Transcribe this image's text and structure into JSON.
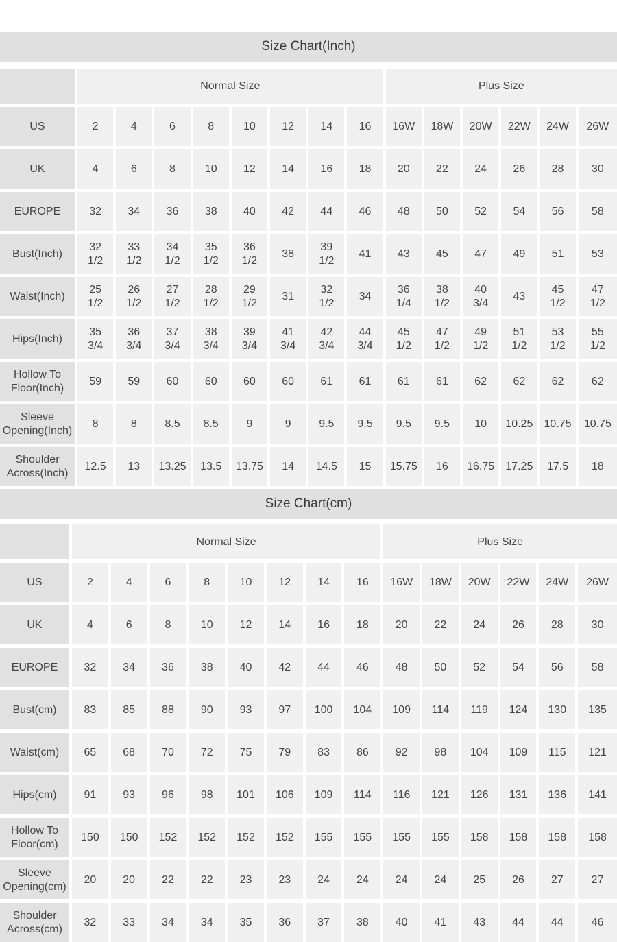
{
  "colors": {
    "banner_bg": "#e0e0e0",
    "label_cell_bg": "#e1e1e1",
    "data_cell_bg": "#f0f0f0",
    "title_text": "#3a3a3a",
    "text": "#454545"
  },
  "tables": [
    {
      "title": "Size Chart(Inch)",
      "groups": [
        {
          "label": "Normal Size",
          "span": 8
        },
        {
          "label": "Plus Size",
          "span": 6
        }
      ],
      "rows": [
        {
          "label": "US",
          "values": [
            "2",
            "4",
            "6",
            "8",
            "10",
            "12",
            "14",
            "16",
            "16W",
            "18W",
            "20W",
            "22W",
            "24W",
            "26W"
          ]
        },
        {
          "label": "UK",
          "values": [
            "4",
            "6",
            "8",
            "10",
            "12",
            "14",
            "16",
            "18",
            "20",
            "22",
            "24",
            "26",
            "28",
            "30"
          ]
        },
        {
          "label": "EUROPE",
          "values": [
            "32",
            "34",
            "36",
            "38",
            "40",
            "42",
            "44",
            "46",
            "48",
            "50",
            "52",
            "54",
            "56",
            "58"
          ]
        },
        {
          "label": "Bust(Inch)",
          "values": [
            "32\n1/2",
            "33\n1/2",
            "34\n1/2",
            "35\n1/2",
            "36\n1/2",
            "38",
            "39\n1/2",
            "41",
            "43",
            "45",
            "47",
            "49",
            "51",
            "53"
          ]
        },
        {
          "label": "Waist(Inch)",
          "values": [
            "25\n1/2",
            "26\n1/2",
            "27\n1/2",
            "28\n1/2",
            "29\n1/2",
            "31",
            "32\n1/2",
            "34",
            "36\n1/4",
            "38\n1/2",
            "40\n3/4",
            "43",
            "45\n1/2",
            "47\n1/2"
          ]
        },
        {
          "label": "Hips(Inch)",
          "values": [
            "35\n3/4",
            "36\n3/4",
            "37\n3/4",
            "38\n3/4",
            "39\n3/4",
            "41\n3/4",
            "42\n3/4",
            "44\n3/4",
            "45\n1/2",
            "47\n1/2",
            "49\n1/2",
            "51\n1/2",
            "53\n1/2",
            "55\n1/2"
          ]
        },
        {
          "label": "Hollow To Floor(Inch)",
          "values": [
            "59",
            "59",
            "60",
            "60",
            "60",
            "60",
            "61",
            "61",
            "61",
            "61",
            "62",
            "62",
            "62",
            "62"
          ]
        },
        {
          "label": "Sleeve Opening(Inch)",
          "values": [
            "8",
            "8",
            "8.5",
            "8.5",
            "9",
            "9",
            "9.5",
            "9.5",
            "9.5",
            "9.5",
            "10",
            "10.25",
            "10.75",
            "10.75"
          ]
        },
        {
          "label": "Shoulder Across(Inch)",
          "values": [
            "12.5",
            "13",
            "13.25",
            "13.5",
            "13.75",
            "14",
            "14.5",
            "15",
            "15.75",
            "16",
            "16.75",
            "17.25",
            "17.5",
            "18"
          ]
        }
      ]
    },
    {
      "title": "Size Chart(cm)",
      "groups": [
        {
          "label": "Normal Size",
          "span": 8
        },
        {
          "label": "Plus Size",
          "span": 6
        }
      ],
      "rows": [
        {
          "label": "US",
          "values": [
            "2",
            "4",
            "6",
            "8",
            "10",
            "12",
            "14",
            "16",
            "16W",
            "18W",
            "20W",
            "22W",
            "24W",
            "26W"
          ]
        },
        {
          "label": "UK",
          "values": [
            "4",
            "6",
            "8",
            "10",
            "12",
            "14",
            "16",
            "18",
            "20",
            "22",
            "24",
            "26",
            "28",
            "30"
          ]
        },
        {
          "label": "EUROPE",
          "values": [
            "32",
            "34",
            "36",
            "38",
            "40",
            "42",
            "44",
            "46",
            "48",
            "50",
            "52",
            "54",
            "56",
            "58"
          ]
        },
        {
          "label": "Bust(cm)",
          "values": [
            "83",
            "85",
            "88",
            "90",
            "93",
            "97",
            "100",
            "104",
            "109",
            "114",
            "119",
            "124",
            "130",
            "135"
          ]
        },
        {
          "label": "Waist(cm)",
          "values": [
            "65",
            "68",
            "70",
            "72",
            "75",
            "79",
            "83",
            "86",
            "92",
            "98",
            "104",
            "109",
            "115",
            "121"
          ]
        },
        {
          "label": "Hips(cm)",
          "values": [
            "91",
            "93",
            "96",
            "98",
            "101",
            "106",
            "109",
            "114",
            "116",
            "121",
            "126",
            "131",
            "136",
            "141"
          ]
        },
        {
          "label": "Hollow To Floor(cm)",
          "values": [
            "150",
            "150",
            "152",
            "152",
            "152",
            "152",
            "155",
            "155",
            "155",
            "155",
            "158",
            "158",
            "158",
            "158"
          ]
        },
        {
          "label": "Sleeve Opening(cm)",
          "values": [
            "20",
            "20",
            "22",
            "22",
            "23",
            "23",
            "24",
            "24",
            "24",
            "24",
            "25",
            "26",
            "27",
            "27"
          ]
        },
        {
          "label": "Shoulder Across(cm)",
          "values": [
            "32",
            "33",
            "34",
            "34",
            "35",
            "36",
            "37",
            "38",
            "40",
            "41",
            "43",
            "44",
            "44",
            "46"
          ]
        }
      ]
    }
  ]
}
